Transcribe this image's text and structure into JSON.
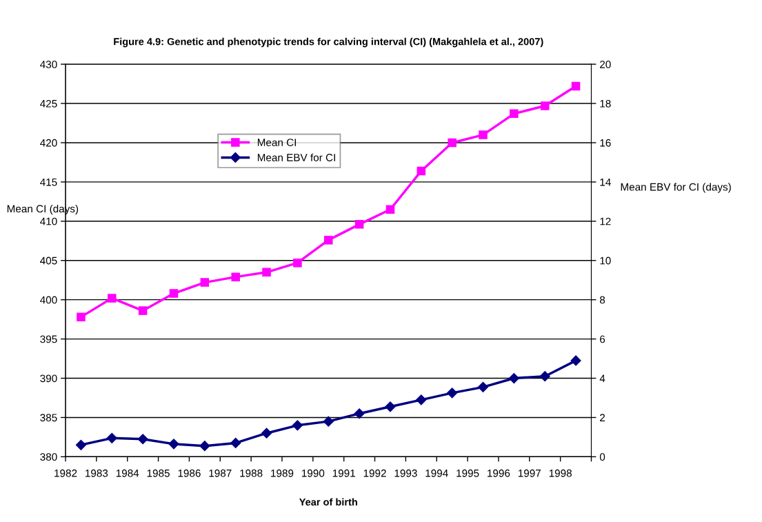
{
  "chart_data": {
    "type": "line",
    "title": "Figure 4.9: Genetic and phenotypic trends for calving interval (CI) (Makgahlela et al., 2007)",
    "xlabel": "Year of birth",
    "ylabel": "Mean CI (days)",
    "y2label": "Mean EBV for CI (days)",
    "x": [
      1982.5,
      1983.5,
      1984.5,
      1985.5,
      1986.5,
      1987.5,
      1988.5,
      1989.5,
      1990.5,
      1991.5,
      1992.5,
      1993.5,
      1994.5,
      1995.5,
      1996.5,
      1997.5,
      1998.5
    ],
    "xlim": [
      1982,
      1999
    ],
    "xticks": [
      1982,
      1983,
      1984,
      1985,
      1986,
      1987,
      1988,
      1989,
      1990,
      1991,
      1992,
      1993,
      1994,
      1995,
      1996,
      1997,
      1998,
      {
        "value": 1999,
        "label": null
      }
    ],
    "ylim": [
      380,
      430
    ],
    "yticks": [
      380,
      385,
      390,
      395,
      400,
      405,
      410,
      415,
      420,
      425,
      430
    ],
    "y2lim": [
      0,
      20
    ],
    "y2ticks": [
      0,
      2,
      4,
      6,
      8,
      10,
      12,
      14,
      16,
      18,
      20
    ],
    "series": [
      {
        "name": "Mean CI",
        "color": "#ff00ff",
        "marker": "square",
        "values": [
          397.8,
          400.2,
          398.6,
          400.8,
          402.2,
          402.9,
          403.5,
          404.7,
          407.6,
          409.6,
          411.5,
          416.4,
          420.0,
          421.0,
          423.7,
          424.7,
          427.2
        ]
      },
      {
        "name": "Mean EBV for CI",
        "color": "#000080",
        "marker": "diamond",
        "axis": "y2",
        "values": [
          0.6,
          0.95,
          0.9,
          0.65,
          0.55,
          0.7,
          1.2,
          1.6,
          1.8,
          2.2,
          2.55,
          2.9,
          3.25,
          3.55,
          4.0,
          4.1,
          4.9
        ]
      }
    ],
    "grid": "y",
    "legend": "top left",
    "line_style": "solid"
  }
}
